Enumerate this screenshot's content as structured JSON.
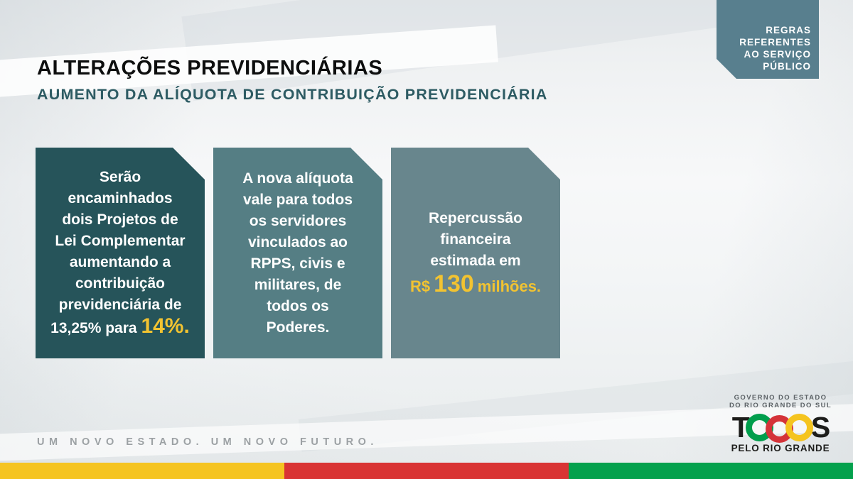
{
  "badge": {
    "text": "REGRAS\nREFERENTES\nAO SERVIÇO\nPÚBLICO"
  },
  "header": {
    "title": "ALTERAÇÕES PREVIDENCIÁRIAS",
    "subtitle": "AUMENTO DA ALÍQUOTA DE CONTRIBUIÇÃO PREVIDENCIÁRIA"
  },
  "cards": [
    {
      "text": "Serão\nencaminhados\ndois Projetos de\nLei Complementar\naumentando a\ncontribuição\nprevidenciária de\n13,25% para ",
      "highlight": "14%."
    },
    {
      "text": "A nova alíquota\nvale para todos\nos servidores\nvinculados ao\nRPPS, civis e\nmilitares, de\ntodos os\nPoderes."
    },
    {
      "text": "Repercussão\nfinanceira\nestimada em",
      "highlight_prefix": "R$",
      "highlight_number": "130",
      "highlight_suffix": "milhões."
    }
  ],
  "footer": {
    "slogan": "UM NOVO ESTADO. UM NOVO FUTURO.",
    "gov_label": "GOVERNO DO ESTADO\nDO RIO GRANDE DO SUL",
    "logo_letter_t": "T",
    "logo_letter_s": "S",
    "logo_tagline": "PELO RIO GRANDE"
  },
  "colors": {
    "accent_yellow": "#f2c331",
    "badge_bg": "#587f8e",
    "card1_bg": "#26545a",
    "card2_bg": "#557e84",
    "card3_bg": "#68868d",
    "stripe_yellow": "#f5c421",
    "stripe_red": "#d93434",
    "stripe_green": "#04a14d",
    "logo_ring_green": "#009e4c",
    "logo_ring_red": "#d43339",
    "logo_ring_yellow": "#f5c41f"
  }
}
